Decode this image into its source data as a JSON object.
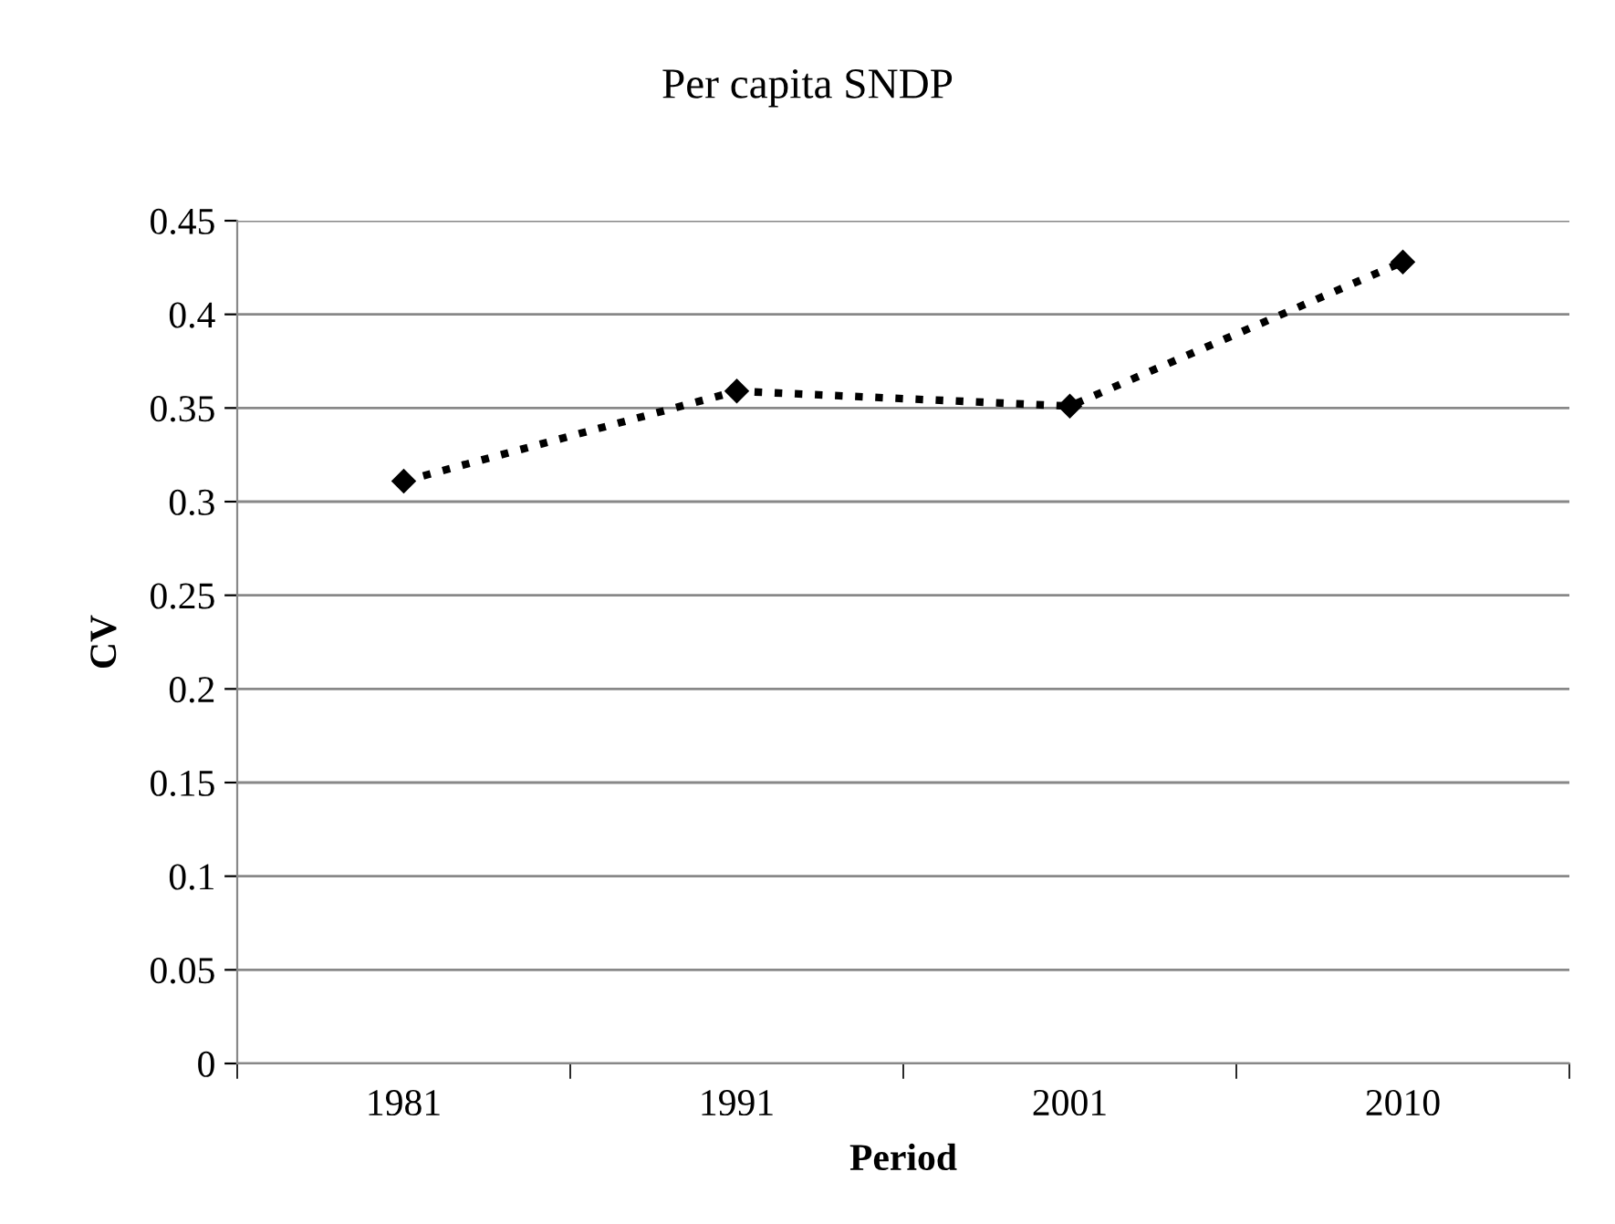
{
  "chart_data": {
    "type": "line",
    "title": "Per capita SNDP",
    "xlabel": "Period",
    "ylabel": "CV",
    "categories": [
      "1981",
      "1991",
      "2001",
      "2010"
    ],
    "series": [
      {
        "color": "#000000",
        "values": [
          0.311,
          0.359,
          0.351,
          0.428
        ]
      }
    ],
    "ylim": [
      0,
      0.45
    ],
    "yticks": [
      0,
      0.05,
      0.1,
      0.15,
      0.2,
      0.25,
      0.3,
      0.35,
      0.4,
      0.45
    ],
    "grid": "y",
    "legend": false,
    "marker": "diamond",
    "line_style": "dotted"
  }
}
